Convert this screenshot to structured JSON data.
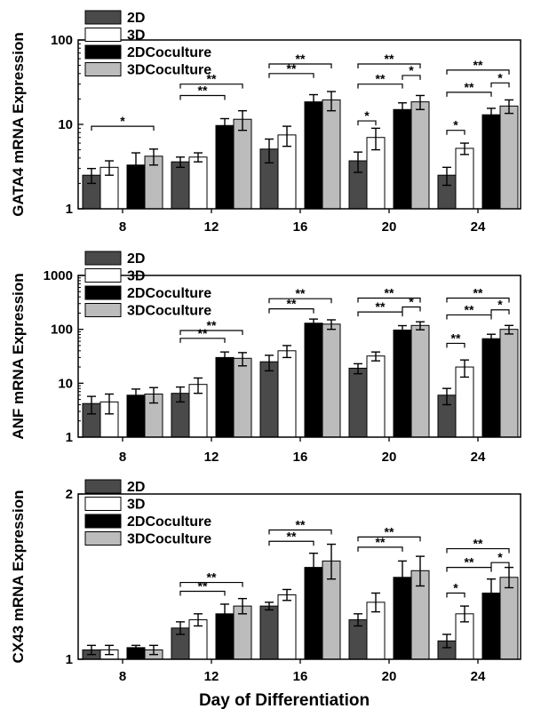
{
  "figure": {
    "xlabel": "Day of Differentiation"
  },
  "chart_data": [
    {
      "type": "bar",
      "ylabel": "GATA4 mRNA Expression",
      "yscale": "log",
      "ylim": [
        1,
        100
      ],
      "yticks": [
        1,
        10,
        100
      ],
      "categories": [
        "8",
        "12",
        "16",
        "20",
        "24"
      ],
      "legend": "top-left",
      "series": [
        {
          "name": "2D",
          "color": "#4a4a4a",
          "values": [
            2.5,
            3.6,
            5.1,
            3.7,
            2.5
          ],
          "errors": [
            0.5,
            0.5,
            1.6,
            1.0,
            0.6
          ]
        },
        {
          "name": "3D",
          "color": "#ffffff",
          "values": [
            3.1,
            4.1,
            7.5,
            7.0,
            5.2
          ],
          "errors": [
            0.6,
            0.5,
            2.0,
            2.0,
            0.8
          ]
        },
        {
          "name": "2DCoculture",
          "color": "#000000",
          "values": [
            3.3,
            9.7,
            18.5,
            15.0,
            13.0
          ],
          "errors": [
            1.3,
            2.0,
            4.0,
            3.0,
            2.5
          ]
        },
        {
          "name": "3DCoculture",
          "color": "#bcbcbc",
          "values": [
            4.2,
            11.5,
            19.5,
            18.5,
            16.5
          ],
          "errors": [
            0.9,
            3.0,
            5.0,
            3.5,
            3.0
          ]
        }
      ],
      "significance": [
        {
          "group": 0,
          "from": 0,
          "to": 3,
          "label": "*",
          "y": 9.5
        },
        {
          "group": 1,
          "from": 0,
          "to": 2,
          "label": "**",
          "y": 22
        },
        {
          "group": 1,
          "from": 0,
          "to": 3,
          "label": "**",
          "y": 30
        },
        {
          "group": 2,
          "from": 0,
          "to": 2,
          "label": "**",
          "y": 40
        },
        {
          "group": 2,
          "from": 0,
          "to": 3,
          "label": "**",
          "y": 52
        },
        {
          "group": 3,
          "from": 0,
          "to": 1,
          "label": "*",
          "y": 11
        },
        {
          "group": 3,
          "from": 0,
          "to": 2,
          "label": "**",
          "y": 30
        },
        {
          "group": 3,
          "from": 0,
          "to": 3,
          "label": "**",
          "y": 52
        },
        {
          "group": 3,
          "from": 2,
          "to": 3,
          "label": "*",
          "y": 38
        },
        {
          "group": 4,
          "from": 0,
          "to": 1,
          "label": "*",
          "y": 8.5
        },
        {
          "group": 4,
          "from": 0,
          "to": 2,
          "label": "**",
          "y": 24
        },
        {
          "group": 4,
          "from": 0,
          "to": 3,
          "label": "**",
          "y": 44
        },
        {
          "group": 4,
          "from": 2,
          "to": 3,
          "label": "*",
          "y": 31
        }
      ]
    },
    {
      "type": "bar",
      "ylabel": "ANF mRNA Expression",
      "yscale": "log",
      "ylim": [
        1,
        1000
      ],
      "yticks": [
        1,
        10,
        100,
        1000
      ],
      "categories": [
        "8",
        "12",
        "16",
        "20",
        "24"
      ],
      "legend": "top-left",
      "series": [
        {
          "name": "2D",
          "color": "#4a4a4a",
          "values": [
            4.2,
            6.5,
            25,
            19,
            6
          ],
          "errors": [
            1.5,
            2.0,
            8,
            4,
            2
          ]
        },
        {
          "name": "3D",
          "color": "#ffffff",
          "values": [
            4.5,
            9.5,
            40,
            32,
            20
          ],
          "errors": [
            1.8,
            3.0,
            10,
            6,
            7
          ]
        },
        {
          "name": "2DCoculture",
          "color": "#000000",
          "values": [
            6.0,
            30,
            130,
            97,
            67
          ],
          "errors": [
            1.8,
            8,
            25,
            20,
            14
          ]
        },
        {
          "name": "3DCoculture",
          "color": "#bcbcbc",
          "values": [
            6.3,
            29,
            125,
            118,
            100
          ],
          "errors": [
            2.0,
            8,
            25,
            20,
            18
          ]
        }
      ],
      "significance": [
        {
          "group": 1,
          "from": 0,
          "to": 2,
          "label": "**",
          "y": 68
        },
        {
          "group": 1,
          "from": 0,
          "to": 3,
          "label": "**",
          "y": 95
        },
        {
          "group": 2,
          "from": 0,
          "to": 2,
          "label": "**",
          "y": 240
        },
        {
          "group": 2,
          "from": 0,
          "to": 3,
          "label": "**",
          "y": 370
        },
        {
          "group": 3,
          "from": 0,
          "to": 2,
          "label": "**",
          "y": 210
        },
        {
          "group": 3,
          "from": 0,
          "to": 3,
          "label": "**",
          "y": 380
        },
        {
          "group": 3,
          "from": 2,
          "to": 3,
          "label": "*",
          "y": 260
        },
        {
          "group": 4,
          "from": 0,
          "to": 1,
          "label": "**",
          "y": 55
        },
        {
          "group": 4,
          "from": 0,
          "to": 2,
          "label": "**",
          "y": 185
        },
        {
          "group": 4,
          "from": 0,
          "to": 3,
          "label": "**",
          "y": 380
        },
        {
          "group": 4,
          "from": 2,
          "to": 3,
          "label": "*",
          "y": 230
        }
      ]
    },
    {
      "type": "bar",
      "ylabel": "CX43 mRNA Expression",
      "yscale": "log",
      "ylim": [
        1,
        2
      ],
      "yticks": [
        1,
        2
      ],
      "categories": [
        "8",
        "12",
        "16",
        "20",
        "24"
      ],
      "legend": "top-left",
      "series": [
        {
          "name": "2D",
          "color": "#4a4a4a",
          "values": [
            1.04,
            1.14,
            1.25,
            1.18,
            1.08
          ],
          "errors": [
            0.02,
            0.03,
            0.02,
            0.03,
            0.03
          ]
        },
        {
          "name": "3D",
          "color": "#ffffff",
          "values": [
            1.04,
            1.18,
            1.31,
            1.27,
            1.21
          ],
          "errors": [
            0.02,
            0.03,
            0.03,
            0.05,
            0.04
          ]
        },
        {
          "name": "2DCoculture",
          "color": "#000000",
          "values": [
            1.05,
            1.21,
            1.47,
            1.41,
            1.32
          ],
          "errors": [
            0.01,
            0.05,
            0.09,
            0.1,
            0.08
          ]
        },
        {
          "name": "3DCoculture",
          "color": "#bcbcbc",
          "values": [
            1.04,
            1.25,
            1.51,
            1.45,
            1.41
          ],
          "errors": [
            0.02,
            0.04,
            0.11,
            0.09,
            0.06
          ]
        }
      ],
      "significance": [
        {
          "group": 1,
          "from": 0,
          "to": 2,
          "label": "**",
          "y": 1.33
        },
        {
          "group": 1,
          "from": 0,
          "to": 3,
          "label": "**",
          "y": 1.38
        },
        {
          "group": 2,
          "from": 0,
          "to": 2,
          "label": "**",
          "y": 1.64
        },
        {
          "group": 2,
          "from": 0,
          "to": 3,
          "label": "**",
          "y": 1.72
        },
        {
          "group": 3,
          "from": 0,
          "to": 2,
          "label": "**",
          "y": 1.6
        },
        {
          "group": 3,
          "from": 0,
          "to": 3,
          "label": "**",
          "y": 1.67
        },
        {
          "group": 4,
          "from": 0,
          "to": 1,
          "label": "*",
          "y": 1.32
        },
        {
          "group": 4,
          "from": 0,
          "to": 2,
          "label": "**",
          "y": 1.47
        },
        {
          "group": 4,
          "from": 0,
          "to": 3,
          "label": "**",
          "y": 1.59
        },
        {
          "group": 4,
          "from": 2,
          "to": 3,
          "label": "*",
          "y": 1.5
        }
      ]
    }
  ]
}
